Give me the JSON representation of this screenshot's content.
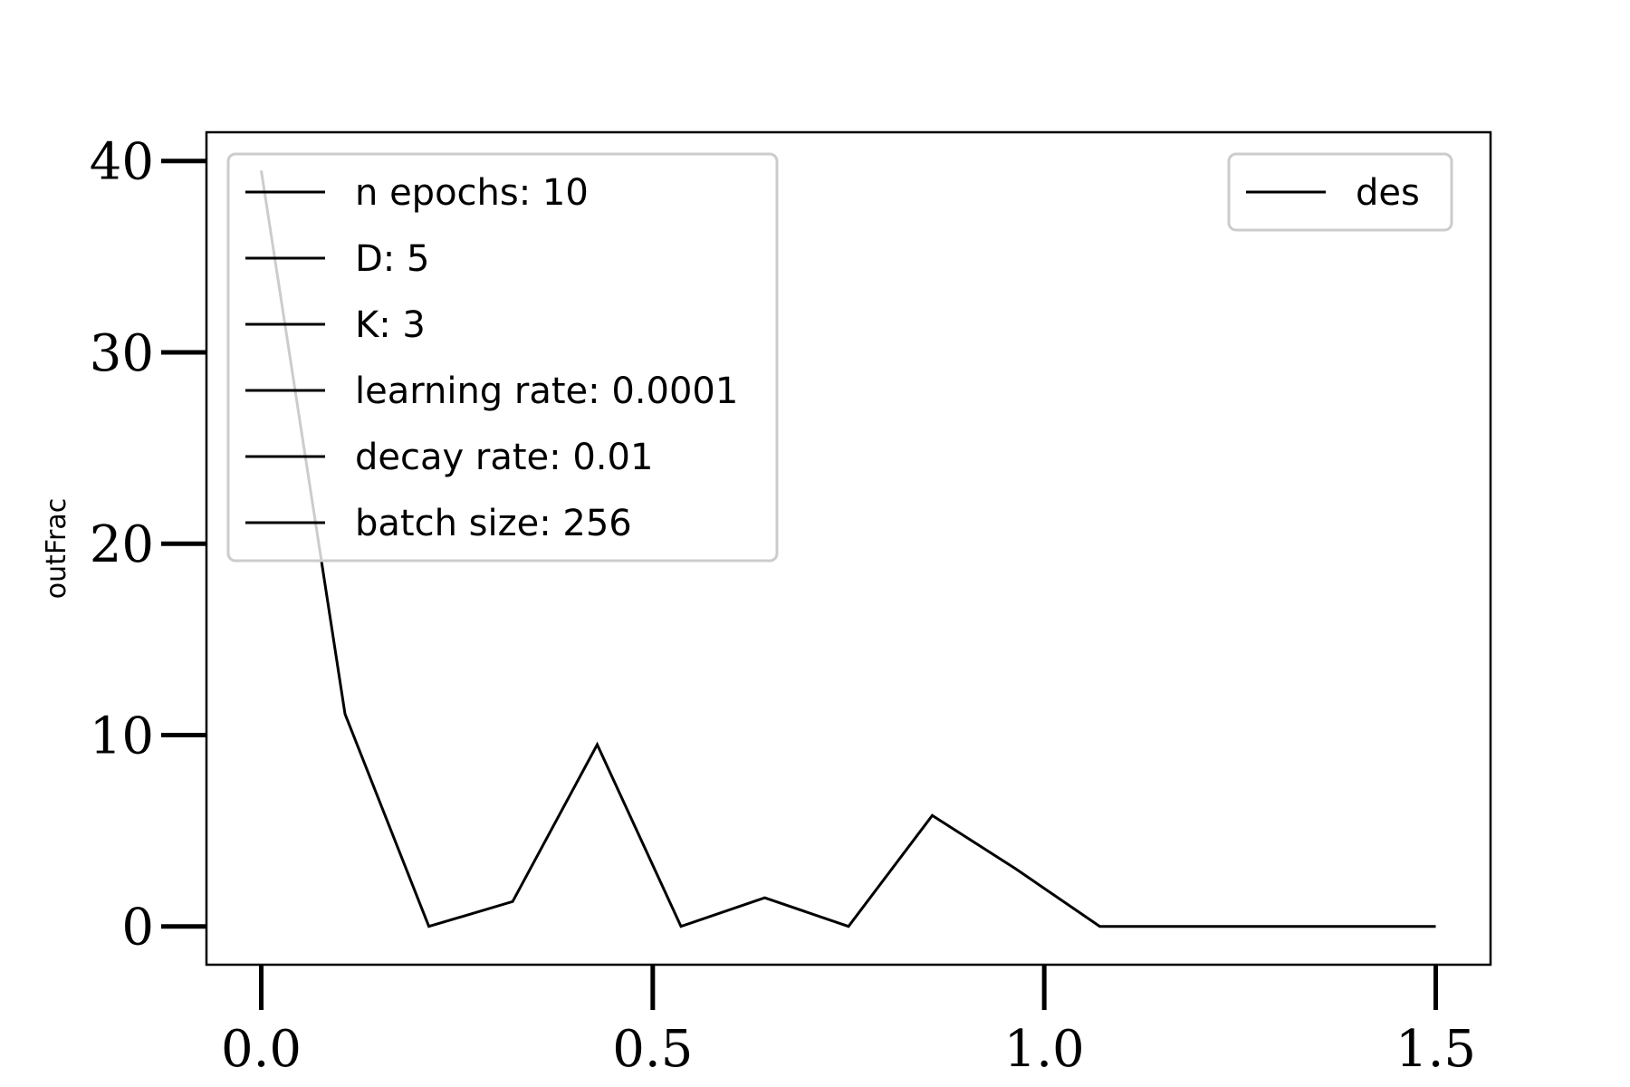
{
  "chart_data": {
    "type": "line",
    "xlabel": "",
    "ylabel": "outFrac",
    "xlim": [
      -0.07,
      1.57
    ],
    "ylim": [
      -2,
      41.5
    ],
    "x_ticks": [
      0.0,
      0.5,
      1.0,
      1.5
    ],
    "x_tick_labels": [
      "0.0",
      "0.5",
      "1.0",
      "1.5"
    ],
    "y_ticks": [
      0,
      10,
      20,
      30,
      40
    ],
    "y_tick_labels": [
      "0",
      "10",
      "20",
      "30",
      "40"
    ],
    "grid": false,
    "series": [
      {
        "name": "des",
        "color": "#000000",
        "x": [
          0.0,
          0.107,
          0.214,
          0.321,
          0.429,
          0.536,
          0.643,
          0.75,
          0.857,
          0.964,
          1.071,
          1.179,
          1.286,
          1.393,
          1.5
        ],
        "y": [
          39.5,
          11.1,
          0.0,
          1.3,
          9.5,
          0.0,
          1.5,
          0.0,
          5.8,
          3.0,
          0.0,
          0.0,
          0.0,
          0.0,
          0.0
        ]
      }
    ],
    "legends": [
      {
        "placement": "upper-left",
        "entries": [
          "n epochs: 10",
          "D: 5",
          "K: 3",
          "learning rate: 0.0001",
          "decay rate: 0.01",
          "batch size: 256"
        ]
      },
      {
        "placement": "upper-right",
        "entries": [
          "des"
        ]
      }
    ]
  }
}
